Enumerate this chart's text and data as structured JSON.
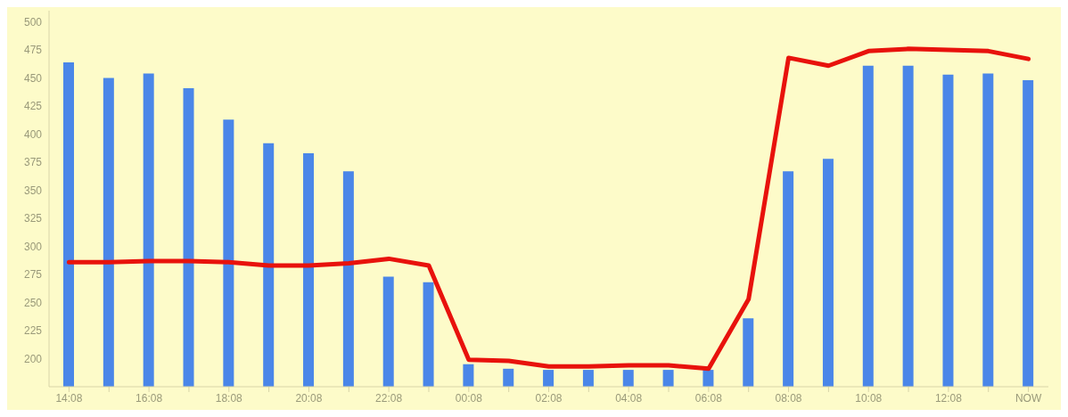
{
  "chart_data": {
    "type": "bar",
    "categories": [
      "14:08",
      null,
      "16:08",
      null,
      "18:08",
      null,
      "20:08",
      null,
      "22:08",
      null,
      "00:08",
      null,
      "02:08",
      null,
      "04:08",
      null,
      "06:08",
      null,
      "08:08",
      null,
      "10:08",
      null,
      "12:08",
      null,
      "NOW"
    ],
    "series": [
      {
        "color": "#4a86e8",
        "values": [
          464,
          450,
          454,
          441,
          413,
          392,
          383,
          367,
          273,
          268,
          195,
          191,
          190,
          190,
          190,
          190,
          190,
          236,
          367,
          378,
          461,
          461,
          453,
          454,
          448
        ]
      },
      {
        "type": "line",
        "color": "#e8120c",
        "values": [
          286,
          286,
          287,
          287,
          286,
          283,
          283,
          285,
          289,
          283,
          199,
          198,
          193,
          193,
          194,
          194,
          191,
          253,
          468,
          461,
          474,
          476,
          475,
          474,
          467
        ]
      }
    ],
    "ylim": [
      175,
      510
    ],
    "yticks": [
      200,
      225,
      250,
      275,
      300,
      325,
      350,
      375,
      400,
      425,
      450,
      475,
      500
    ],
    "marker": "none",
    "line_style": "solid"
  }
}
